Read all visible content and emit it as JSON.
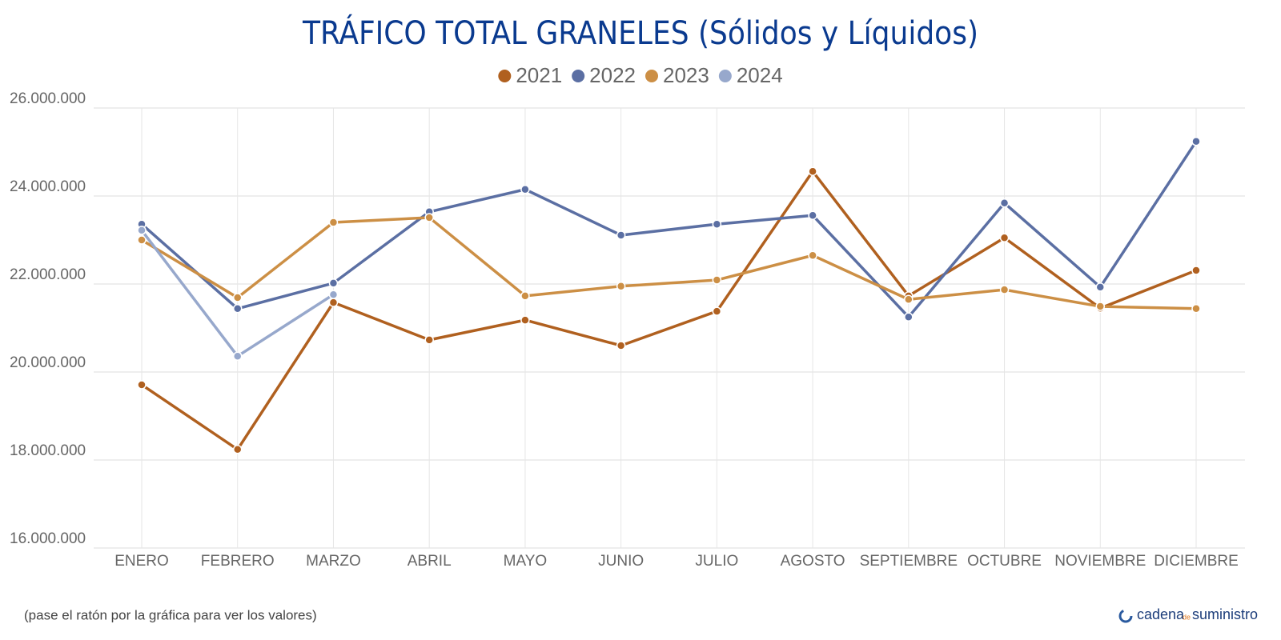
{
  "chart_data": {
    "type": "line",
    "title": "TRÁFICO TOTAL GRANELES (Sólidos y Líquidos)",
    "categories": [
      "ENERO",
      "FEBRERO",
      "MARZO",
      "ABRIL",
      "MAYO",
      "JUNIO",
      "JULIO",
      "AGOSTO",
      "SEPTIEMBRE",
      "OCTUBRE",
      "NOVIEMBRE",
      "DICIEMBRE"
    ],
    "series": [
      {
        "name": "2021",
        "color": "#b0601f",
        "values": [
          19710000,
          18240000,
          21580000,
          20730000,
          21180000,
          20600000,
          21380000,
          24560000,
          21730000,
          23050000,
          21450000,
          22310000
        ]
      },
      {
        "name": "2022",
        "color": "#5b6fa3",
        "values": [
          23360000,
          21440000,
          22020000,
          23640000,
          24150000,
          23110000,
          23360000,
          23560000,
          21250000,
          23840000,
          21930000,
          25240000
        ]
      },
      {
        "name": "2023",
        "color": "#cc8f45",
        "values": [
          23000000,
          21690000,
          23400000,
          23510000,
          21730000,
          21950000,
          22090000,
          22650000,
          21650000,
          21870000,
          21490000,
          21440000
        ]
      },
      {
        "name": "2024",
        "color": "#97a8cc",
        "values": [
          23220000,
          20360000,
          21760000,
          null,
          null,
          null,
          null,
          null,
          null,
          null,
          null,
          null
        ]
      }
    ],
    "ylim": [
      16000000,
      26000000
    ],
    "yticks": [
      {
        "value": 16000000,
        "label": "16.000.000"
      },
      {
        "value": 18000000,
        "label": "18.000.000"
      },
      {
        "value": 20000000,
        "label": "20.000.000"
      },
      {
        "value": 22000000,
        "label": "22.000.000"
      },
      {
        "value": 24000000,
        "label": "24.000.000"
      },
      {
        "value": 26000000,
        "label": "26.000.000"
      }
    ],
    "grid": true,
    "legend": "top",
    "footnote": "(pase el ratón por la gráfica para ver los valores)",
    "logo": [
      "cadena",
      "de",
      "suministro"
    ]
  }
}
